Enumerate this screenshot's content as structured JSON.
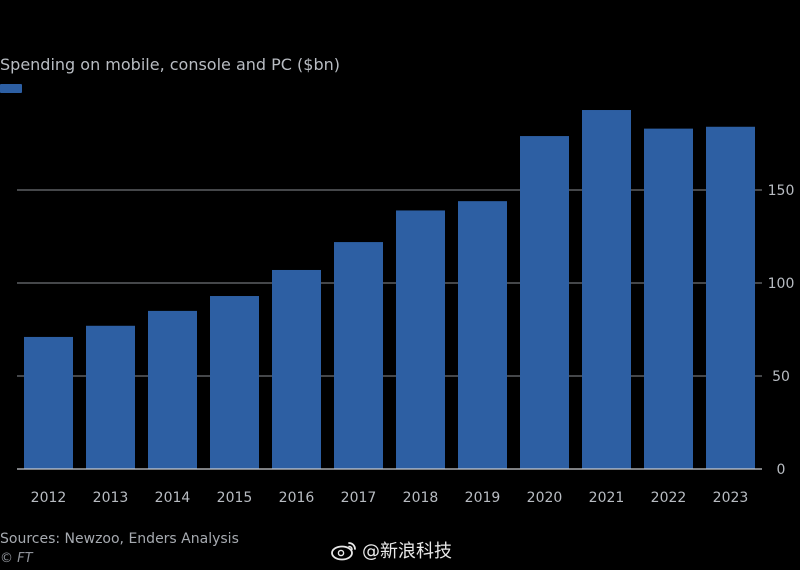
{
  "chart_data": {
    "type": "bar",
    "title": "Spending on mobile, console and PC ($bn)",
    "categories": [
      "2012",
      "2013",
      "2014",
      "2015",
      "2016",
      "2017",
      "2018",
      "2019",
      "2020",
      "2021",
      "2022",
      "2023"
    ],
    "series": [
      {
        "name": "",
        "values": [
          71,
          77,
          85,
          93,
          107,
          122,
          139,
          144,
          179,
          193,
          183,
          184
        ]
      }
    ],
    "xlabel": "",
    "ylabel": "",
    "ylim": [
      0,
      195
    ],
    "yticks": [
      0,
      50,
      100,
      150
    ],
    "y_axis_side": "right",
    "grid": true,
    "colors": {
      "bar": "#2d5fa3",
      "grid": "#8a8e94",
      "axis_text": "#b8bcc2",
      "background": "#000000"
    }
  },
  "footer": {
    "source": "Sources: Newzoo, Enders Analysis",
    "credit": "© FT"
  },
  "watermark": {
    "text": "@新浪科技",
    "icon": "weibo-icon"
  }
}
